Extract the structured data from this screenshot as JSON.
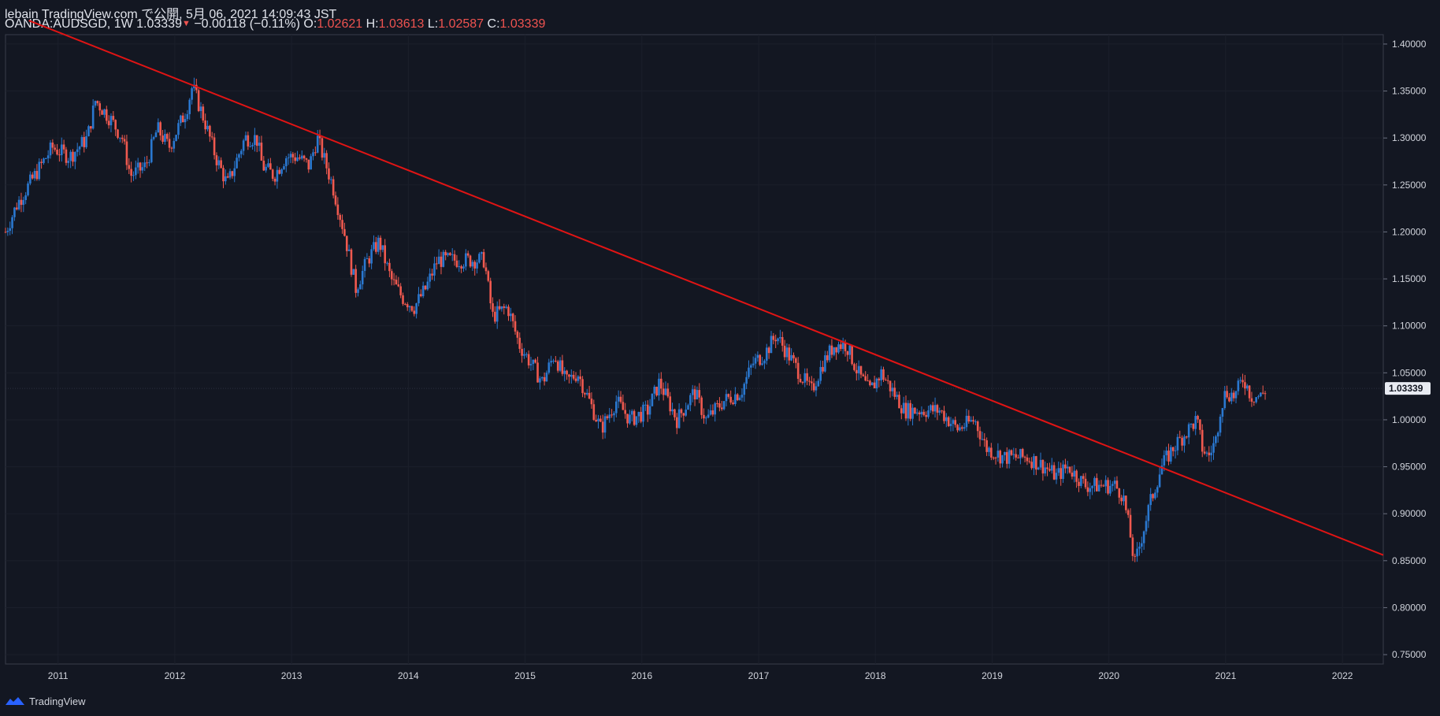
{
  "header": {
    "publish_line": "lebain TradingView.com で公開, 5月 06, 2021 14:09:43 JST",
    "symbol": "OANDA:AUDSGD, 1W",
    "last": "1.03339",
    "change": "−0.00118 (−0.11%)",
    "o_label": "O:",
    "o_value": "1.02621",
    "h_label": "H:",
    "h_value": "1.03613",
    "l_label": "L:",
    "l_value": "1.02587",
    "c_label": "C:",
    "c_value": "1.03339"
  },
  "footer": {
    "brand": "TradingView",
    "logo_icon": "tradingview-logo-icon"
  },
  "colors": {
    "up": "#2a78d0",
    "down": "#f0594f",
    "trendline": "#e01414",
    "background": "#131722"
  },
  "chart_data": {
    "type": "candlestick",
    "symbol": "OANDA:AUDSGD",
    "interval": "1W",
    "ylim": [
      0.74,
      1.41
    ],
    "y_ticks": [
      0.75,
      0.8,
      0.85,
      0.9,
      0.95,
      1.0,
      1.05,
      1.1,
      1.15,
      1.2,
      1.25,
      1.3,
      1.35,
      1.4
    ],
    "x_ticks": [
      "2011",
      "2012",
      "2013",
      "2014",
      "2015",
      "2016",
      "2017",
      "2018",
      "2019",
      "2020",
      "2021",
      "2022"
    ],
    "x_range": [
      2010.55,
      2022.35
    ],
    "last_price": 1.03339,
    "last_price_label": "1.03339",
    "price_path": [
      [
        2010.55,
        1.2
      ],
      [
        2010.65,
        1.23
      ],
      [
        2010.8,
        1.26
      ],
      [
        2010.95,
        1.29
      ],
      [
        2011.1,
        1.28
      ],
      [
        2011.25,
        1.3
      ],
      [
        2011.32,
        1.34
      ],
      [
        2011.45,
        1.32
      ],
      [
        2011.55,
        1.3
      ],
      [
        2011.62,
        1.26
      ],
      [
        2011.75,
        1.27
      ],
      [
        2011.85,
        1.31
      ],
      [
        2011.95,
        1.29
      ],
      [
        2012.1,
        1.33
      ],
      [
        2012.15,
        1.355
      ],
      [
        2012.25,
        1.32
      ],
      [
        2012.35,
        1.28
      ],
      [
        2012.45,
        1.25
      ],
      [
        2012.6,
        1.3
      ],
      [
        2012.7,
        1.3
      ],
      [
        2012.75,
        1.27
      ],
      [
        2012.85,
        1.26
      ],
      [
        2012.95,
        1.28
      ],
      [
        2013.05,
        1.28
      ],
      [
        2013.15,
        1.27
      ],
      [
        2013.22,
        1.3
      ],
      [
        2013.35,
        1.25
      ],
      [
        2013.45,
        1.2
      ],
      [
        2013.55,
        1.14
      ],
      [
        2013.65,
        1.17
      ],
      [
        2013.75,
        1.19
      ],
      [
        2013.85,
        1.15
      ],
      [
        2013.95,
        1.13
      ],
      [
        2014.05,
        1.12
      ],
      [
        2014.15,
        1.14
      ],
      [
        2014.25,
        1.17
      ],
      [
        2014.35,
        1.17
      ],
      [
        2014.5,
        1.17
      ],
      [
        2014.65,
        1.17
      ],
      [
        2014.72,
        1.11
      ],
      [
        2014.85,
        1.12
      ],
      [
        2014.95,
        1.08
      ],
      [
        2015.05,
        1.06
      ],
      [
        2015.15,
        1.04
      ],
      [
        2015.25,
        1.07
      ],
      [
        2015.35,
        1.04
      ],
      [
        2015.45,
        1.05
      ],
      [
        2015.55,
        1.02
      ],
      [
        2015.65,
        0.99
      ],
      [
        2015.78,
        1.02
      ],
      [
        2015.9,
        1.0
      ],
      [
        2016.05,
        1.01
      ],
      [
        2016.15,
        1.04
      ],
      [
        2016.3,
        1.0
      ],
      [
        2016.45,
        1.03
      ],
      [
        2016.55,
        1.0
      ],
      [
        2016.7,
        1.02
      ],
      [
        2016.85,
        1.03
      ],
      [
        2016.95,
        1.06
      ],
      [
        2017.05,
        1.07
      ],
      [
        2017.15,
        1.09
      ],
      [
        2017.25,
        1.07
      ],
      [
        2017.35,
        1.05
      ],
      [
        2017.45,
        1.03
      ],
      [
        2017.55,
        1.06
      ],
      [
        2017.65,
        1.08
      ],
      [
        2017.75,
        1.08
      ],
      [
        2017.85,
        1.05
      ],
      [
        2017.95,
        1.03
      ],
      [
        2018.05,
        1.05
      ],
      [
        2018.15,
        1.03
      ],
      [
        2018.25,
        1.01
      ],
      [
        2018.4,
        1.01
      ],
      [
        2018.55,
        1.01
      ],
      [
        2018.7,
        0.99
      ],
      [
        2018.85,
        1.0
      ],
      [
        2018.95,
        0.97
      ],
      [
        2019.1,
        0.96
      ],
      [
        2019.2,
        0.96
      ],
      [
        2019.3,
        0.96
      ],
      [
        2019.45,
        0.95
      ],
      [
        2019.55,
        0.94
      ],
      [
        2019.65,
        0.95
      ],
      [
        2019.8,
        0.93
      ],
      [
        2019.95,
        0.93
      ],
      [
        2020.05,
        0.93
      ],
      [
        2020.12,
        0.92
      ],
      [
        2020.18,
        0.88
      ],
      [
        2020.22,
        0.845
      ],
      [
        2020.27,
        0.87
      ],
      [
        2020.35,
        0.91
      ],
      [
        2020.45,
        0.95
      ],
      [
        2020.5,
        0.96
      ],
      [
        2020.55,
        0.97
      ],
      [
        2020.65,
        0.985
      ],
      [
        2020.75,
        1.0
      ],
      [
        2020.8,
        0.97
      ],
      [
        2020.85,
        0.96
      ],
      [
        2020.92,
        0.98
      ],
      [
        2020.95,
        1.01
      ],
      [
        2021.0,
        1.03
      ],
      [
        2021.08,
        1.025
      ],
      [
        2021.15,
        1.045
      ],
      [
        2021.22,
        1.025
      ],
      [
        2021.3,
        1.025
      ],
      [
        2021.35,
        1.0334
      ]
    ],
    "trendline": {
      "from": [
        2010.75,
        1.425
      ],
      "to": [
        2022.35,
        0.856
      ]
    }
  }
}
